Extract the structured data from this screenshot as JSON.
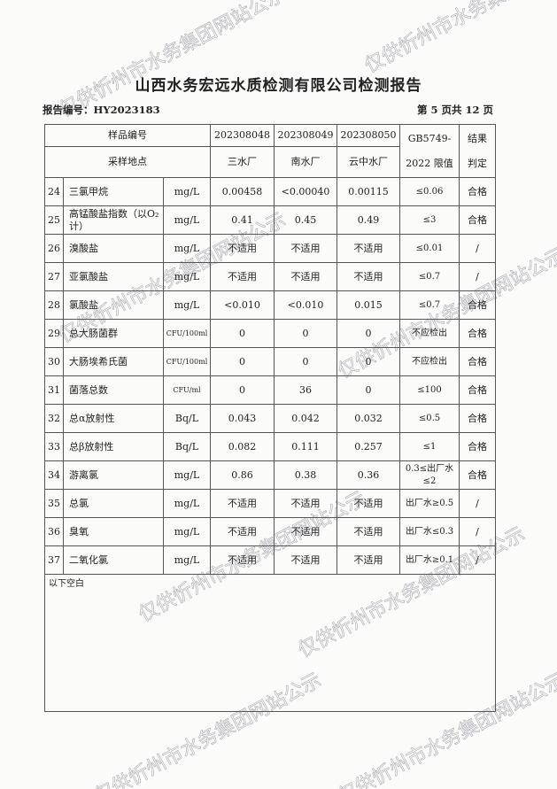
{
  "title": "山西水务宏远水质检测有限公司检测报告",
  "report_no": "报告编号：HY2023183",
  "page_info": "第 5 页共 12 页",
  "header": {
    "sample_no_label": "样品编号",
    "location_label": "采样地点",
    "samples": [
      "202308048",
      "202308049",
      "202308050"
    ],
    "locations": [
      "三水厂",
      "南水厂",
      "云中水厂"
    ],
    "limit_label_1": "GB5749-",
    "limit_label_2": "2022 限值",
    "result_label_1": "结果",
    "result_label_2": "判定"
  },
  "rows": [
    {
      "no": "24",
      "name": "三氯甲烷",
      "unit": "mg/L",
      "v1": "0.00458",
      "v2": "<0.00040",
      "v3": "0.00115",
      "limit": "≤0.06",
      "result": "合格"
    },
    {
      "no": "25",
      "name": "高锰酸盐指数（以O₂计）",
      "unit": "mg/L",
      "v1": "0.41",
      "v2": "0.45",
      "v3": "0.49",
      "limit": "≤3",
      "result": "合格"
    },
    {
      "no": "26",
      "name": "溴酸盐",
      "unit": "mg/L",
      "v1": "不适用",
      "v2": "不适用",
      "v3": "不适用",
      "limit": "≤0.01",
      "result": "/"
    },
    {
      "no": "27",
      "name": "亚氯酸盐",
      "unit": "mg/L",
      "v1": "不适用",
      "v2": "不适用",
      "v3": "不适用",
      "limit": "≤0.7",
      "result": "/"
    },
    {
      "no": "28",
      "name": "氯酸盐",
      "unit": "mg/L",
      "v1": "<0.010",
      "v2": "<0.010",
      "v3": "0.015",
      "limit": "≤0.7",
      "result": "合格"
    },
    {
      "no": "29",
      "name": "总大肠菌群",
      "unit": "CFU/100ml",
      "v1": "0",
      "v2": "0",
      "v3": "0",
      "limit": "不应检出",
      "result": "合格"
    },
    {
      "no": "30",
      "name": "大肠埃希氏菌",
      "unit": "CFU/100ml",
      "v1": "0",
      "v2": "0",
      "v3": "0",
      "limit": "不应检出",
      "result": "合格"
    },
    {
      "no": "31",
      "name": "菌落总数",
      "unit": "CFU/ml",
      "v1": "0",
      "v2": "36",
      "v3": "0",
      "limit": "≤100",
      "result": "合格"
    },
    {
      "no": "32",
      "name": "总α放射性",
      "unit": "Bq/L",
      "v1": "0.043",
      "v2": "0.042",
      "v3": "0.032",
      "limit": "≤0.5",
      "result": "合格"
    },
    {
      "no": "33",
      "name": "总β放射性",
      "unit": "Bq/L",
      "v1": "0.082",
      "v2": "0.111",
      "v3": "0.257",
      "limit": "≤1",
      "result": "合格"
    },
    {
      "no": "34",
      "name": "游离氯",
      "unit": "mg/L",
      "v1": "0.86",
      "v2": "0.38",
      "v3": "0.36",
      "limit": "0.3≤出厂水≤2",
      "result": "合格"
    },
    {
      "no": "35",
      "name": "总氯",
      "unit": "mg/L",
      "v1": "不适用",
      "v2": "不适用",
      "v3": "不适用",
      "limit": "出厂水≥0.5",
      "result": "/"
    },
    {
      "no": "36",
      "name": "臭氧",
      "unit": "mg/L",
      "v1": "不适用",
      "v2": "不适用",
      "v3": "不适用",
      "limit": "出厂水≤0.3",
      "result": "/"
    },
    {
      "no": "37",
      "name": "二氧化氯",
      "unit": "mg/L",
      "v1": "不适用",
      "v2": "不适用",
      "v3": "不适用",
      "limit": "出厂水≥0.1",
      "result": "/"
    }
  ],
  "footer_note": "以下空白",
  "watermark": "仅供忻州市水务集团网站公示"
}
